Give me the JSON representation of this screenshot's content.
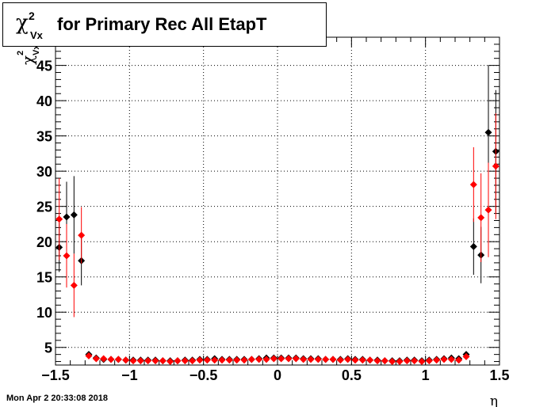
{
  "title": {
    "symbol": "χ",
    "superscript": "2",
    "subscript": "Vx",
    "text": "for Primary Rec All EtapT"
  },
  "timestamp": "Mon Apr  2 20:33:08 2018",
  "chart_data": {
    "type": "scatter",
    "title": "χ²Vx for Primary Rec All EtapT",
    "xlabel": "η",
    "ylabel": "χ²Vx",
    "xlim": [
      -1.5,
      1.5
    ],
    "ylim": [
      2.5,
      49
    ],
    "xticks": [
      -1.5,
      -1,
      -0.5,
      0,
      0.5,
      1,
      1.5
    ],
    "xtick_labels": [
      "−1.5",
      "−1",
      "−0.5",
      "0",
      "0.5",
      "1",
      "1.5"
    ],
    "yticks": [
      5,
      10,
      15,
      20,
      25,
      30,
      35,
      40,
      45
    ],
    "grid": true,
    "colors": {
      "series1": "#000000",
      "series2": "#ff0000"
    },
    "series": [
      {
        "x": [
          -1.475,
          -1.425,
          -1.375,
          -1.325,
          -1.275,
          -1.225,
          -1.175,
          -1.125,
          -1.075,
          -1.025,
          -0.975,
          -0.925,
          -0.875,
          -0.825,
          -0.775,
          -0.725,
          -0.675,
          -0.625,
          -0.575,
          -0.525,
          -0.475,
          -0.425,
          -0.375,
          -0.325,
          -0.275,
          -0.225,
          -0.175,
          -0.125,
          -0.075,
          -0.025,
          0.025,
          0.075,
          0.125,
          0.175,
          0.225,
          0.275,
          0.325,
          0.375,
          0.425,
          0.475,
          0.525,
          0.575,
          0.625,
          0.675,
          0.725,
          0.775,
          0.825,
          0.875,
          0.925,
          0.975,
          1.025,
          1.075,
          1.125,
          1.175,
          1.225,
          1.275,
          1.325,
          1.375,
          1.425,
          1.475
        ],
        "y": [
          19.2,
          23.5,
          23.8,
          17.3,
          4.0,
          3.5,
          3.3,
          3.3,
          3.3,
          3.2,
          3.2,
          3.2,
          3.2,
          3.2,
          3.1,
          3.1,
          3.1,
          3.2,
          3.2,
          3.3,
          3.3,
          3.4,
          3.3,
          3.3,
          3.3,
          3.3,
          3.3,
          3.4,
          3.5,
          3.5,
          3.5,
          3.5,
          3.5,
          3.4,
          3.4,
          3.4,
          3.3,
          3.3,
          3.3,
          3.4,
          3.3,
          3.3,
          3.2,
          3.2,
          3.1,
          3.1,
          3.1,
          3.2,
          3.2,
          3.1,
          3.2,
          3.3,
          3.4,
          3.5,
          3.4,
          4.0,
          19.3,
          18.1,
          35.5,
          32.8
        ],
        "err": [
          3.5,
          5.0,
          5.5,
          3.5,
          0.3,
          0.2,
          0.2,
          0.2,
          0.2,
          0.1,
          0.1,
          0.1,
          0.1,
          0.1,
          0.1,
          0.1,
          0.1,
          0.1,
          0.1,
          0.1,
          0.1,
          0.1,
          0.1,
          0.1,
          0.1,
          0.1,
          0.1,
          0.1,
          0.1,
          0.1,
          0.1,
          0.1,
          0.1,
          0.1,
          0.1,
          0.1,
          0.1,
          0.1,
          0.1,
          0.1,
          0.1,
          0.1,
          0.1,
          0.1,
          0.1,
          0.1,
          0.1,
          0.1,
          0.1,
          0.1,
          0.1,
          0.2,
          0.2,
          0.2,
          0.2,
          0.3,
          4.0,
          4.0,
          9.5,
          8.7
        ]
      },
      {
        "x": [
          -1.475,
          -1.425,
          -1.375,
          -1.325,
          -1.275,
          -1.225,
          -1.175,
          -1.125,
          -1.075,
          -1.025,
          -0.975,
          -0.925,
          -0.875,
          -0.825,
          -0.775,
          -0.725,
          -0.675,
          -0.625,
          -0.575,
          -0.525,
          -0.475,
          -0.425,
          -0.375,
          -0.325,
          -0.275,
          -0.225,
          -0.175,
          -0.125,
          -0.075,
          -0.025,
          0.025,
          0.075,
          0.125,
          0.175,
          0.225,
          0.275,
          0.325,
          0.375,
          0.425,
          0.475,
          0.525,
          0.575,
          0.625,
          0.675,
          0.725,
          0.775,
          0.825,
          0.875,
          0.925,
          0.975,
          1.025,
          1.075,
          1.125,
          1.175,
          1.225,
          1.275,
          1.325,
          1.375,
          1.425,
          1.475
        ],
        "y": [
          23.2,
          18.0,
          13.8,
          20.9,
          3.8,
          3.4,
          3.4,
          3.3,
          3.3,
          3.2,
          3.1,
          3.1,
          3.1,
          3.1,
          3.1,
          3.0,
          3.1,
          3.1,
          3.1,
          3.2,
          3.2,
          3.2,
          3.2,
          3.2,
          3.2,
          3.2,
          3.3,
          3.3,
          3.3,
          3.4,
          3.4,
          3.4,
          3.4,
          3.3,
          3.3,
          3.3,
          3.3,
          3.3,
          3.2,
          3.3,
          3.2,
          3.2,
          3.2,
          3.1,
          3.1,
          3.0,
          3.0,
          3.1,
          3.1,
          3.0,
          3.1,
          3.2,
          3.3,
          3.3,
          3.2,
          3.7,
          28.1,
          23.4,
          24.5,
          30.7
        ],
        "err": [
          5.8,
          4.5,
          4.5,
          4.0,
          0.3,
          0.2,
          0.2,
          0.2,
          0.2,
          0.1,
          0.1,
          0.1,
          0.1,
          0.1,
          0.1,
          0.1,
          0.1,
          0.1,
          0.1,
          0.1,
          0.1,
          0.1,
          0.1,
          0.1,
          0.1,
          0.1,
          0.1,
          0.1,
          0.1,
          0.1,
          0.1,
          0.1,
          0.1,
          0.1,
          0.1,
          0.1,
          0.1,
          0.1,
          0.1,
          0.1,
          0.1,
          0.1,
          0.1,
          0.1,
          0.1,
          0.1,
          0.1,
          0.1,
          0.1,
          0.1,
          0.1,
          0.2,
          0.2,
          0.2,
          0.2,
          0.3,
          5.3,
          6.3,
          6.7,
          7.5
        ]
      }
    ]
  }
}
